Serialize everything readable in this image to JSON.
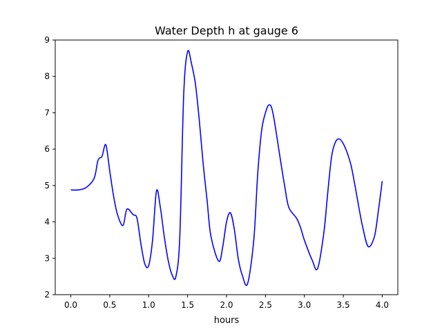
{
  "chart_data": {
    "type": "line",
    "title": "Water Depth h at gauge 6",
    "xlabel": "hours",
    "ylabel": "",
    "xlim": [
      -0.2,
      4.2
    ],
    "ylim": [
      2,
      9
    ],
    "xticks": [
      0.0,
      0.5,
      1.0,
      1.5,
      2.0,
      2.5,
      3.0,
      3.5,
      4.0
    ],
    "xtick_labels": [
      "0.0",
      "0.5",
      "1.0",
      "1.5",
      "2.0",
      "2.5",
      "3.0",
      "3.5",
      "4.0"
    ],
    "yticks": [
      2,
      3,
      4,
      5,
      6,
      7,
      8,
      9
    ],
    "ytick_labels": [
      "2",
      "3",
      "4",
      "5",
      "6",
      "7",
      "8",
      "9"
    ],
    "grid": false,
    "series": [
      {
        "color": "#0000ff",
        "x": [
          0.0,
          0.1,
          0.2,
          0.3,
          0.35,
          0.4,
          0.45,
          0.5,
          0.55,
          0.6,
          0.67,
          0.72,
          0.8,
          0.85,
          0.9,
          0.95,
          1.0,
          1.05,
          1.1,
          1.15,
          1.2,
          1.25,
          1.3,
          1.35,
          1.4,
          1.45,
          1.5,
          1.55,
          1.6,
          1.65,
          1.7,
          1.75,
          1.8,
          1.9,
          1.95,
          2.0,
          2.05,
          2.1,
          2.15,
          2.2,
          2.27,
          2.35,
          2.4,
          2.45,
          2.5,
          2.55,
          2.6,
          2.7,
          2.75,
          2.8,
          2.9,
          2.95,
          3.0,
          3.1,
          3.17,
          3.25,
          3.3,
          3.35,
          3.4,
          3.45,
          3.5,
          3.55,
          3.6,
          3.65,
          3.7,
          3.75,
          3.82,
          3.9,
          3.95,
          4.0
        ],
        "y": [
          4.88,
          4.88,
          4.95,
          5.2,
          5.7,
          5.8,
          6.12,
          5.4,
          4.7,
          4.2,
          3.9,
          4.35,
          4.2,
          4.1,
          3.4,
          2.85,
          2.8,
          3.5,
          4.85,
          4.4,
          3.6,
          2.95,
          2.55,
          2.5,
          3.6,
          7.5,
          8.68,
          8.35,
          7.8,
          6.8,
          5.6,
          4.6,
          3.6,
          2.92,
          3.3,
          4.0,
          4.25,
          3.8,
          3.0,
          2.55,
          2.3,
          3.5,
          5.3,
          6.5,
          7.0,
          7.22,
          6.95,
          5.6,
          4.95,
          4.4,
          4.1,
          3.85,
          3.5,
          2.95,
          2.72,
          3.7,
          4.8,
          5.8,
          6.2,
          6.28,
          6.15,
          5.9,
          5.55,
          5.0,
          4.4,
          3.85,
          3.32,
          3.6,
          4.3,
          5.12
        ]
      }
    ]
  }
}
